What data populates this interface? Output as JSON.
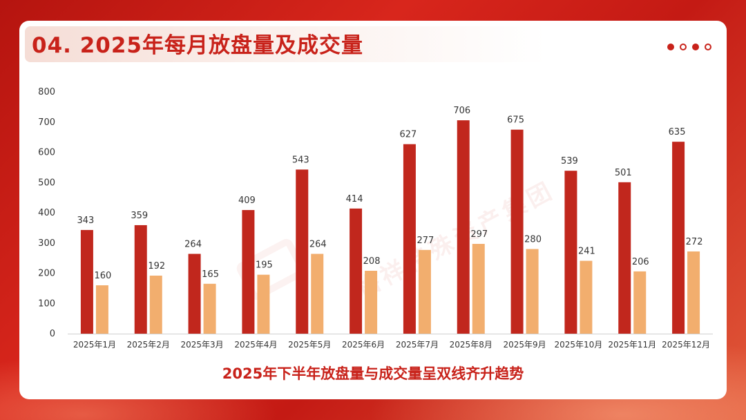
{
  "page": {
    "title": "04. 2025年每月放盘量及成交量",
    "subtitle": "2025年下半年放盘量与成交量呈双线齐升趋势",
    "watermark": "格祥特殊资产集团"
  },
  "colors": {
    "listing": "#c1271d",
    "transaction": "#f2ae6e",
    "accent": "#c8221a"
  },
  "chart_data": {
    "type": "bar",
    "categories": [
      "2025年1月",
      "2025年2月",
      "2025年3月",
      "2025年4月",
      "2025年5月",
      "2025年6月",
      "2025年7月",
      "2025年8月",
      "2025年9月",
      "2025年10月",
      "2025年11月",
      "2025年12月"
    ],
    "series": [
      {
        "name": "放盘量",
        "values": [
          343,
          359,
          264,
          409,
          543,
          414,
          627,
          706,
          675,
          539,
          501,
          635
        ]
      },
      {
        "name": "成交量",
        "values": [
          160,
          192,
          165,
          195,
          264,
          208,
          277,
          297,
          280,
          241,
          206,
          272
        ]
      }
    ],
    "ylim": [
      0,
      800
    ],
    "yticks": [
      0,
      100,
      200,
      300,
      400,
      500,
      600,
      700,
      800
    ],
    "title": "",
    "xlabel": "",
    "ylabel": "",
    "legend": "none"
  }
}
